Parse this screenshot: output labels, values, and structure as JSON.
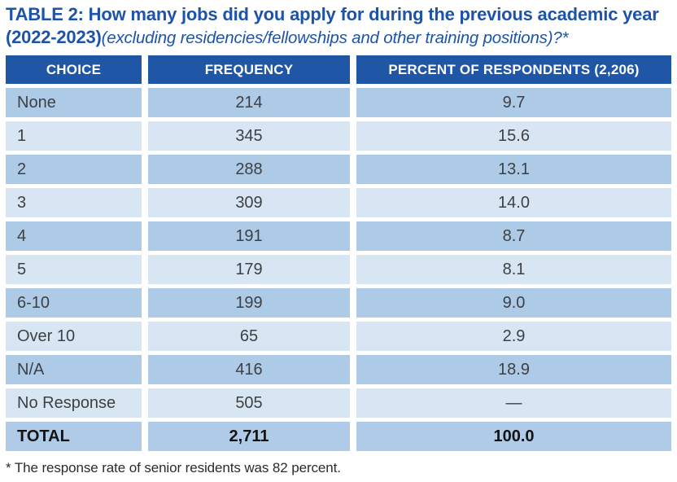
{
  "title": {
    "bold": "TABLE 2: How many jobs did you apply for during the previous academic year (2022-2023)",
    "italic": "(excluding residencies/fellowships and other training positions)?*"
  },
  "table": {
    "headers": [
      "CHOICE",
      "FREQUENCY",
      "PERCENT OF RESPONDENTS (2,206)"
    ],
    "rows": [
      {
        "choice": "None",
        "frequency": "214",
        "percent": "9.7"
      },
      {
        "choice": "1",
        "frequency": "345",
        "percent": "15.6"
      },
      {
        "choice": "2",
        "frequency": "288",
        "percent": "13.1"
      },
      {
        "choice": "3",
        "frequency": "309",
        "percent": "14.0"
      },
      {
        "choice": "4",
        "frequency": "191",
        "percent": "8.7"
      },
      {
        "choice": "5",
        "frequency": "179",
        "percent": "8.1"
      },
      {
        "choice": "6-10",
        "frequency": "199",
        "percent": "9.0"
      },
      {
        "choice": "Over 10",
        "frequency": "65",
        "percent": "2.9"
      },
      {
        "choice": "N/A",
        "frequency": "416",
        "percent": "18.9"
      },
      {
        "choice": "No Response",
        "frequency": "505",
        "percent": "—"
      }
    ],
    "total_row": {
      "choice": "TOTAL",
      "frequency": "2,711",
      "percent": "100.0"
    }
  },
  "footnote": "* The response rate of senior residents was 82 percent.",
  "colors": {
    "title_blue": "#1d53a8",
    "header_bg": "#1f56a5",
    "row_medium": "#adcae7",
    "row_light": "#d8e5f3",
    "total_bg": "#b0cbe8",
    "body_text": "#3e4144"
  }
}
